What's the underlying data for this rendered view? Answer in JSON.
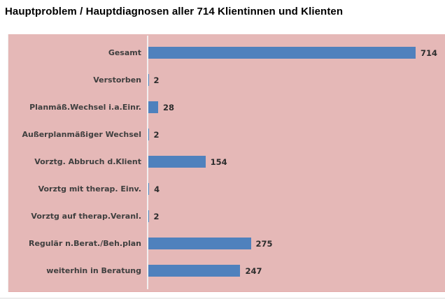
{
  "chart_data": {
    "type": "bar",
    "orientation": "horizontal",
    "title": "Hauptproblem / Hauptdiagnosen aller 714 Klientinnen und Klienten",
    "categories": [
      "Gesamt",
      "Verstorben",
      "Planmäß.Wechsel i.a.Einr.",
      "Außerplanmäßiger Wechsel",
      "Vorztg. Abbruch d.Klient",
      "Vorztg mit therap. Einv.",
      "Vorztg auf therap.Veranl.",
      "Regulär n.Berat./Beh.plan",
      "weiterhin in Beratung"
    ],
    "values": [
      714,
      2,
      28,
      2,
      154,
      4,
      2,
      275,
      247
    ],
    "xlim": [
      0,
      714
    ],
    "value_labels_shown": true,
    "grid": false,
    "legend": "none"
  },
  "colors": {
    "page_bg": "#ffffff",
    "plot_bg": "#e5b8b7",
    "bar_color": "#4f81bd",
    "axis_line": "#f2eff0",
    "title_color": "#000000",
    "label_color": "#3f3f3f",
    "value_color": "#2d2d2d"
  }
}
